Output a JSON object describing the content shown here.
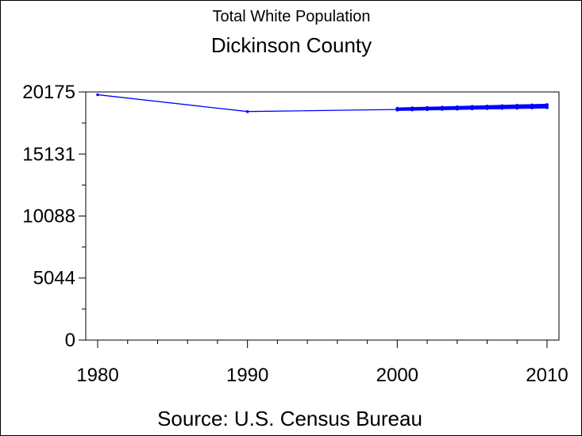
{
  "chart_data": {
    "type": "line",
    "title": "Total White Population",
    "subtitle": "Dickinson County",
    "source": "Source: U.S. Census Bureau",
    "xlabel": "",
    "ylabel": "",
    "xlim": [
      1980,
      2010
    ],
    "ylim": [
      0,
      20175
    ],
    "x_ticks": [
      "1980",
      "1990",
      "2000",
      "2010"
    ],
    "y_ticks": [
      "0",
      "5044",
      "10088",
      "15131",
      "20175"
    ],
    "grid": false,
    "legend": "none",
    "series": [
      {
        "x": [
          1980,
          1990,
          2000,
          2010
        ],
        "y": [
          19950,
          18580,
          18750,
          18900
        ]
      },
      {
        "x": [
          2000,
          2001,
          2002,
          2003,
          2004,
          2005,
          2006,
          2007,
          2008,
          2009,
          2010
        ],
        "y": [
          18850,
          18880,
          18910,
          18940,
          18970,
          19000,
          19030,
          19060,
          19090,
          19120,
          19150
        ]
      },
      {
        "x": [
          2000,
          2001,
          2002,
          2003,
          2004,
          2005,
          2006,
          2007,
          2008,
          2009,
          2010
        ],
        "y": [
          18800,
          18830,
          18860,
          18890,
          18920,
          18950,
          18980,
          19010,
          19040,
          19070,
          19100
        ]
      },
      {
        "x": [
          2000,
          2001,
          2002,
          2003,
          2004,
          2005,
          2006,
          2007,
          2008,
          2009,
          2010
        ],
        "y": [
          18780,
          18800,
          18820,
          18850,
          18870,
          18890,
          18920,
          18940,
          18960,
          18990,
          19010
        ]
      },
      {
        "x": [
          2000,
          2001,
          2002,
          2003,
          2004,
          2005,
          2006,
          2007,
          2008,
          2009,
          2010
        ],
        "y": [
          18700,
          18720,
          18740,
          18760,
          18780,
          18800,
          18820,
          18840,
          18860,
          18880,
          18900
        ]
      }
    ],
    "colors": {
      "line": "#0000ff",
      "axis": "#000000"
    }
  }
}
